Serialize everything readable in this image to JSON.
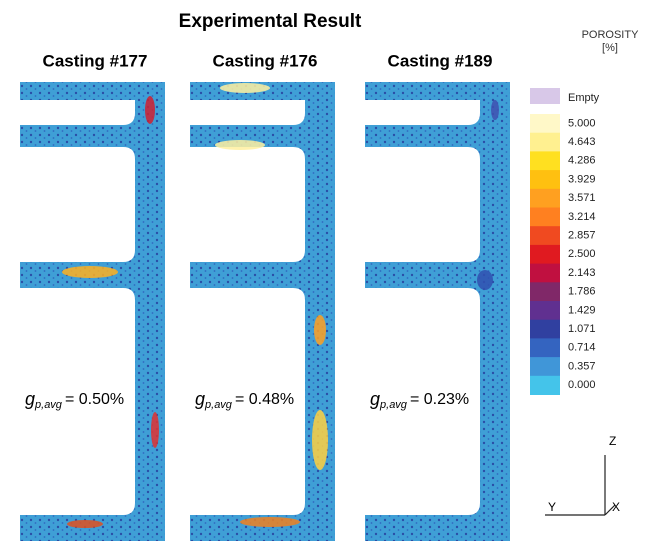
{
  "header": {
    "title": "Experimental Result"
  },
  "castings": [
    {
      "label": "Casting #177",
      "symbol": "g",
      "subscript": "p,avg",
      "value_text": "= 0.50%"
    },
    {
      "label": "Casting #176",
      "symbol": "g",
      "subscript": "p,avg",
      "value_text": "= 0.48%"
    },
    {
      "label": "Casting #189",
      "symbol": "g",
      "subscript": "p,avg",
      "value_text": "= 0.23%"
    }
  ],
  "legend": {
    "title": "POROSITY",
    "unit": "[%]",
    "empty": "Empty",
    "labels": [
      "5.000",
      "4.643",
      "4.286",
      "3.929",
      "3.571",
      "3.214",
      "2.857",
      "2.500",
      "2.143",
      "1.786",
      "1.429",
      "1.071",
      "0.714",
      "0.357",
      "0.000"
    ]
  },
  "axes": {
    "z": "Z",
    "x": "X",
    "y": "Y"
  }
}
